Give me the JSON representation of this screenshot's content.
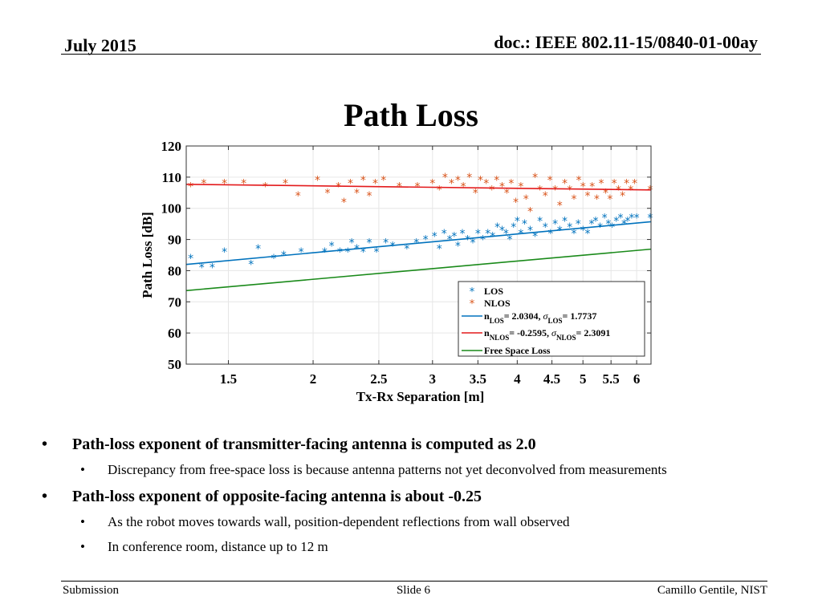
{
  "header": {
    "date": "July 2015",
    "doc": "doc.: IEEE 802.11-15/0840-01-00ay"
  },
  "slide": {
    "title": "Path Loss",
    "bullets": [
      {
        "text": "Path-loss exponent of transmitter-facing antenna is computed as 2.0",
        "sub": [
          "Discrepancy from free-space loss is because antenna patterns not yet deconvolved from measurements"
        ]
      },
      {
        "text": "Path-loss exponent of opposite-facing antenna is about -0.25",
        "sub": [
          "As the robot moves towards wall, position-dependent reflections from wall observed",
          "In conference room, distance up to 12 m"
        ]
      }
    ]
  },
  "footer": {
    "left": "Submission",
    "center": "Slide 6",
    "right": "Camillo Gentile, NIST"
  },
  "colors": {
    "los": "#0072bd",
    "nlos": "#d95319",
    "nlos_fit": "#e31a1c",
    "free_space": "#1a8a1a",
    "grid": "#e6e6e6"
  },
  "chart_data": {
    "type": "scatter",
    "title": "",
    "xlabel": "Tx-Rx Separation [m]",
    "ylabel": "Path Loss [dB]",
    "xscale": "log",
    "xlim": [
      1.3,
      6.3
    ],
    "ylim": [
      50,
      120
    ],
    "xticks": [
      1.5,
      2,
      2.5,
      3,
      3.5,
      4,
      4.5,
      5,
      5.5,
      6
    ],
    "xticklabels": [
      "1.5",
      "2",
      "2.5",
      "3",
      "3.5",
      "4",
      "4.5",
      "5",
      "5.5",
      "6"
    ],
    "yticks": [
      50,
      60,
      70,
      80,
      90,
      100,
      110,
      120
    ],
    "grid": true,
    "legend_position": "bottom-right",
    "series": [
      {
        "name": "LOS",
        "kind": "points",
        "marker": "*",
        "x": [
          1.32,
          1.37,
          1.42,
          1.48,
          1.62,
          1.66,
          1.75,
          1.81,
          1.92,
          2.08,
          2.13,
          2.19,
          2.25,
          2.28,
          2.32,
          2.37,
          2.42,
          2.48,
          2.56,
          2.62,
          2.75,
          2.84,
          2.93,
          3.02,
          3.07,
          3.12,
          3.18,
          3.23,
          3.27,
          3.32,
          3.38,
          3.44,
          3.5,
          3.56,
          3.62,
          3.68,
          3.74,
          3.8,
          3.85,
          3.9,
          3.95,
          4.0,
          4.05,
          4.1,
          4.18,
          4.25,
          4.32,
          4.4,
          4.48,
          4.55,
          4.62,
          4.7,
          4.78,
          4.85,
          4.92,
          5.0,
          5.08,
          5.15,
          5.22,
          5.3,
          5.38,
          5.45,
          5.52,
          5.6,
          5.68,
          5.75,
          5.82,
          5.9,
          6.0,
          6.28
        ],
        "y": [
          84,
          81,
          81,
          86,
          82,
          87,
          84,
          85,
          86,
          86,
          88,
          86,
          86,
          89,
          87,
          86,
          89,
          86,
          89,
          88,
          87,
          89,
          90,
          91,
          87,
          92,
          90,
          91,
          88,
          92,
          90,
          89,
          92,
          90,
          92,
          91,
          94,
          93,
          92,
          90,
          94,
          96,
          92,
          95,
          93,
          91,
          96,
          94,
          92,
          95,
          93,
          96,
          94,
          92,
          95,
          93,
          92,
          95,
          96,
          94,
          97,
          95,
          94,
          96,
          97,
          95,
          96,
          97,
          97,
          97
        ]
      },
      {
        "name": "NLOS",
        "kind": "points",
        "marker": "*",
        "x": [
          1.32,
          1.38,
          1.48,
          1.58,
          1.7,
          1.82,
          1.9,
          2.03,
          2.1,
          2.18,
          2.22,
          2.27,
          2.32,
          2.37,
          2.42,
          2.47,
          2.54,
          2.68,
          2.85,
          3.0,
          3.07,
          3.13,
          3.2,
          3.27,
          3.33,
          3.4,
          3.47,
          3.53,
          3.6,
          3.67,
          3.73,
          3.8,
          3.86,
          3.92,
          3.98,
          4.05,
          4.12,
          4.18,
          4.25,
          4.32,
          4.4,
          4.47,
          4.55,
          4.62,
          4.7,
          4.78,
          4.85,
          4.93,
          5.0,
          5.08,
          5.16,
          5.24,
          5.32,
          5.4,
          5.48,
          5.56,
          5.64,
          5.72,
          5.8,
          5.88,
          5.96,
          6.28
        ],
        "y": [
          107,
          108,
          108,
          108,
          107,
          108,
          104,
          109,
          105,
          107,
          102,
          108,
          105,
          109,
          104,
          108,
          109,
          107,
          107,
          108,
          106,
          110,
          108,
          109,
          107,
          110,
          105,
          109,
          108,
          106,
          109,
          107,
          105,
          108,
          102,
          107,
          103,
          99,
          110,
          106,
          104,
          109,
          106,
          101,
          108,
          106,
          103,
          109,
          107,
          104,
          107,
          103,
          108,
          105,
          103,
          108,
          106,
          104,
          108,
          106,
          108,
          106
        ]
      },
      {
        "name": "n_LOS = 2.0304, σ_LOS = 1.7737",
        "kind": "line",
        "x": [
          1.3,
          6.3
        ],
        "y": [
          82.0,
          95.7
        ]
      },
      {
        "name": "n_NLOS = -0.2595, σ_NLOS = 2.3091",
        "kind": "line",
        "x": [
          1.3,
          6.3
        ],
        "y": [
          107.7,
          105.9
        ]
      },
      {
        "name": "Free Space Loss",
        "kind": "line",
        "x": [
          1.3,
          6.3
        ],
        "y": [
          73.6,
          86.9
        ]
      }
    ],
    "legend": [
      {
        "key": "los",
        "label": "LOS"
      },
      {
        "key": "nlos",
        "label": "NLOS"
      },
      {
        "key": "fit_los",
        "n_base": "n",
        "n_sub": "LOS",
        "eq1": "= 2.0304, ",
        "sigma": "σ",
        "s_sub": "LOS",
        "eq2": "= 1.7737"
      },
      {
        "key": "fit_nlos",
        "n_base": "n",
        "n_sub": "NLOS",
        "eq1": "= -0.2595, ",
        "sigma": "σ",
        "s_sub": "NLOS",
        "eq2": "= 2.3091"
      },
      {
        "key": "free_space",
        "label": "Free Space Loss"
      }
    ]
  }
}
